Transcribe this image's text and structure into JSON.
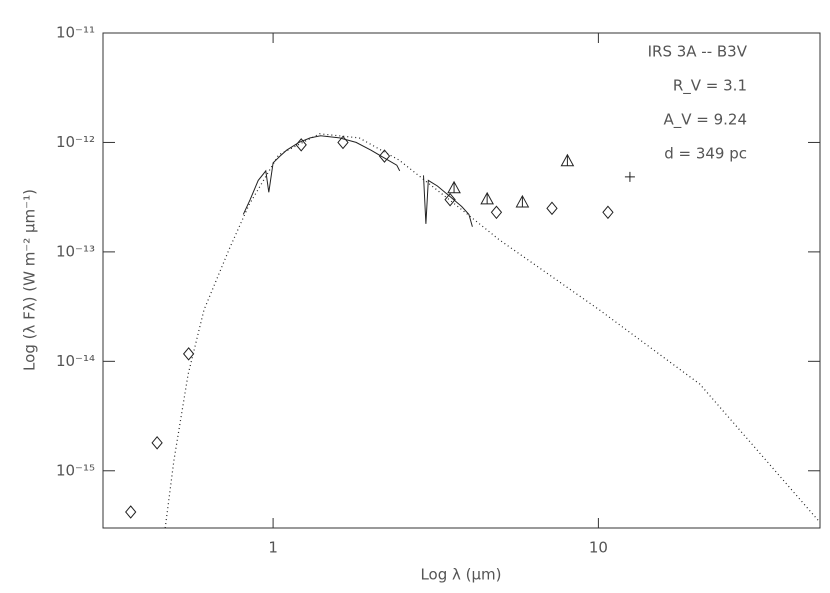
{
  "chart_data": {
    "type": "scatter",
    "xlabel": "Log λ (μm)",
    "ylabel": "Log (λ Fλ) (W m⁻² μm⁻¹)",
    "annotations": [
      "IRS 3A -- B3V",
      "R_V = 3.1",
      "A_V = 9.24",
      "d = 349 pc"
    ],
    "xlog": true,
    "ylog": true,
    "xlim": [
      0.3,
      48
    ],
    "ylim": [
      3e-16,
      1e-11
    ],
    "xticks": [
      1,
      10
    ],
    "yticks": [
      {
        "value": 1e-11,
        "label": "10⁻¹¹"
      },
      {
        "value": 1e-12,
        "label": "10⁻¹²"
      },
      {
        "value": 1e-13,
        "label": "10⁻¹³"
      },
      {
        "value": 1e-14,
        "label": "10⁻¹⁴"
      },
      {
        "value": 1e-15,
        "label": "10⁻¹⁵"
      }
    ],
    "color": "#222222",
    "series": [
      {
        "type": "line",
        "style": "dotted",
        "x": [
          0.466,
          0.496,
          0.548,
          0.613,
          0.732,
          0.844,
          1.04,
          1.39,
          1.84,
          2.44,
          3.48,
          4.96,
          10.07,
          20.5,
          47.9
        ],
        "values": [
          3e-16,
          1.26e-15,
          7.6e-15,
          2.95e-14,
          1.05e-13,
          2.7e-13,
          7.7e-13,
          1.2e-12,
          1.1e-12,
          6.9e-13,
          3e-13,
          1.29e-13,
          2.95e-14,
          6.2e-15,
          3.4e-16
        ]
      },
      {
        "type": "line",
        "style": "solid",
        "x": [
          0.81,
          0.85,
          0.9,
          0.95,
          0.97,
          1.0,
          1.05,
          1.1,
          1.2,
          1.3,
          1.4,
          1.6,
          1.8,
          2.0,
          2.2,
          2.4,
          2.45,
          null,
          2.9,
          2.95,
          3.0,
          3.2,
          3.5,
          3.8,
          4.0,
          4.1
        ],
        "values": [
          2.2e-13,
          3e-13,
          4.5e-13,
          5.5e-13,
          3.5e-13,
          6.5e-13,
          7.5e-13,
          8.5e-13,
          1e-12,
          1.1e-12,
          1.15e-12,
          1.1e-12,
          1e-12,
          8.5e-13,
          7.2e-13,
          6.2e-13,
          5.5e-13,
          null,
          5e-13,
          1.8e-13,
          4.5e-13,
          4e-13,
          3.2e-13,
          2.6e-13,
          2.2e-13,
          1.7e-13
        ]
      },
      {
        "type": "marker",
        "marker": "diamond",
        "x": [
          0.365,
          0.44,
          0.55,
          1.22,
          1.64,
          2.2,
          3.5,
          4.86,
          7.2,
          10.7
        ],
        "values": [
          4.2e-16,
          1.8e-15,
          1.17e-14,
          9.5e-13,
          1e-12,
          7.5e-13,
          3e-13,
          2.3e-13,
          2.5e-13,
          2.3e-13
        ]
      },
      {
        "type": "marker",
        "marker": "triangle",
        "x": [
          3.6,
          4.55,
          5.84,
          8.03
        ],
        "values": [
          3.85e-13,
          3.05e-13,
          2.86e-13,
          6.8e-13
        ]
      },
      {
        "type": "marker",
        "marker": "plus",
        "x": [
          12.5
        ],
        "values": [
          4.85e-13
        ]
      }
    ]
  }
}
